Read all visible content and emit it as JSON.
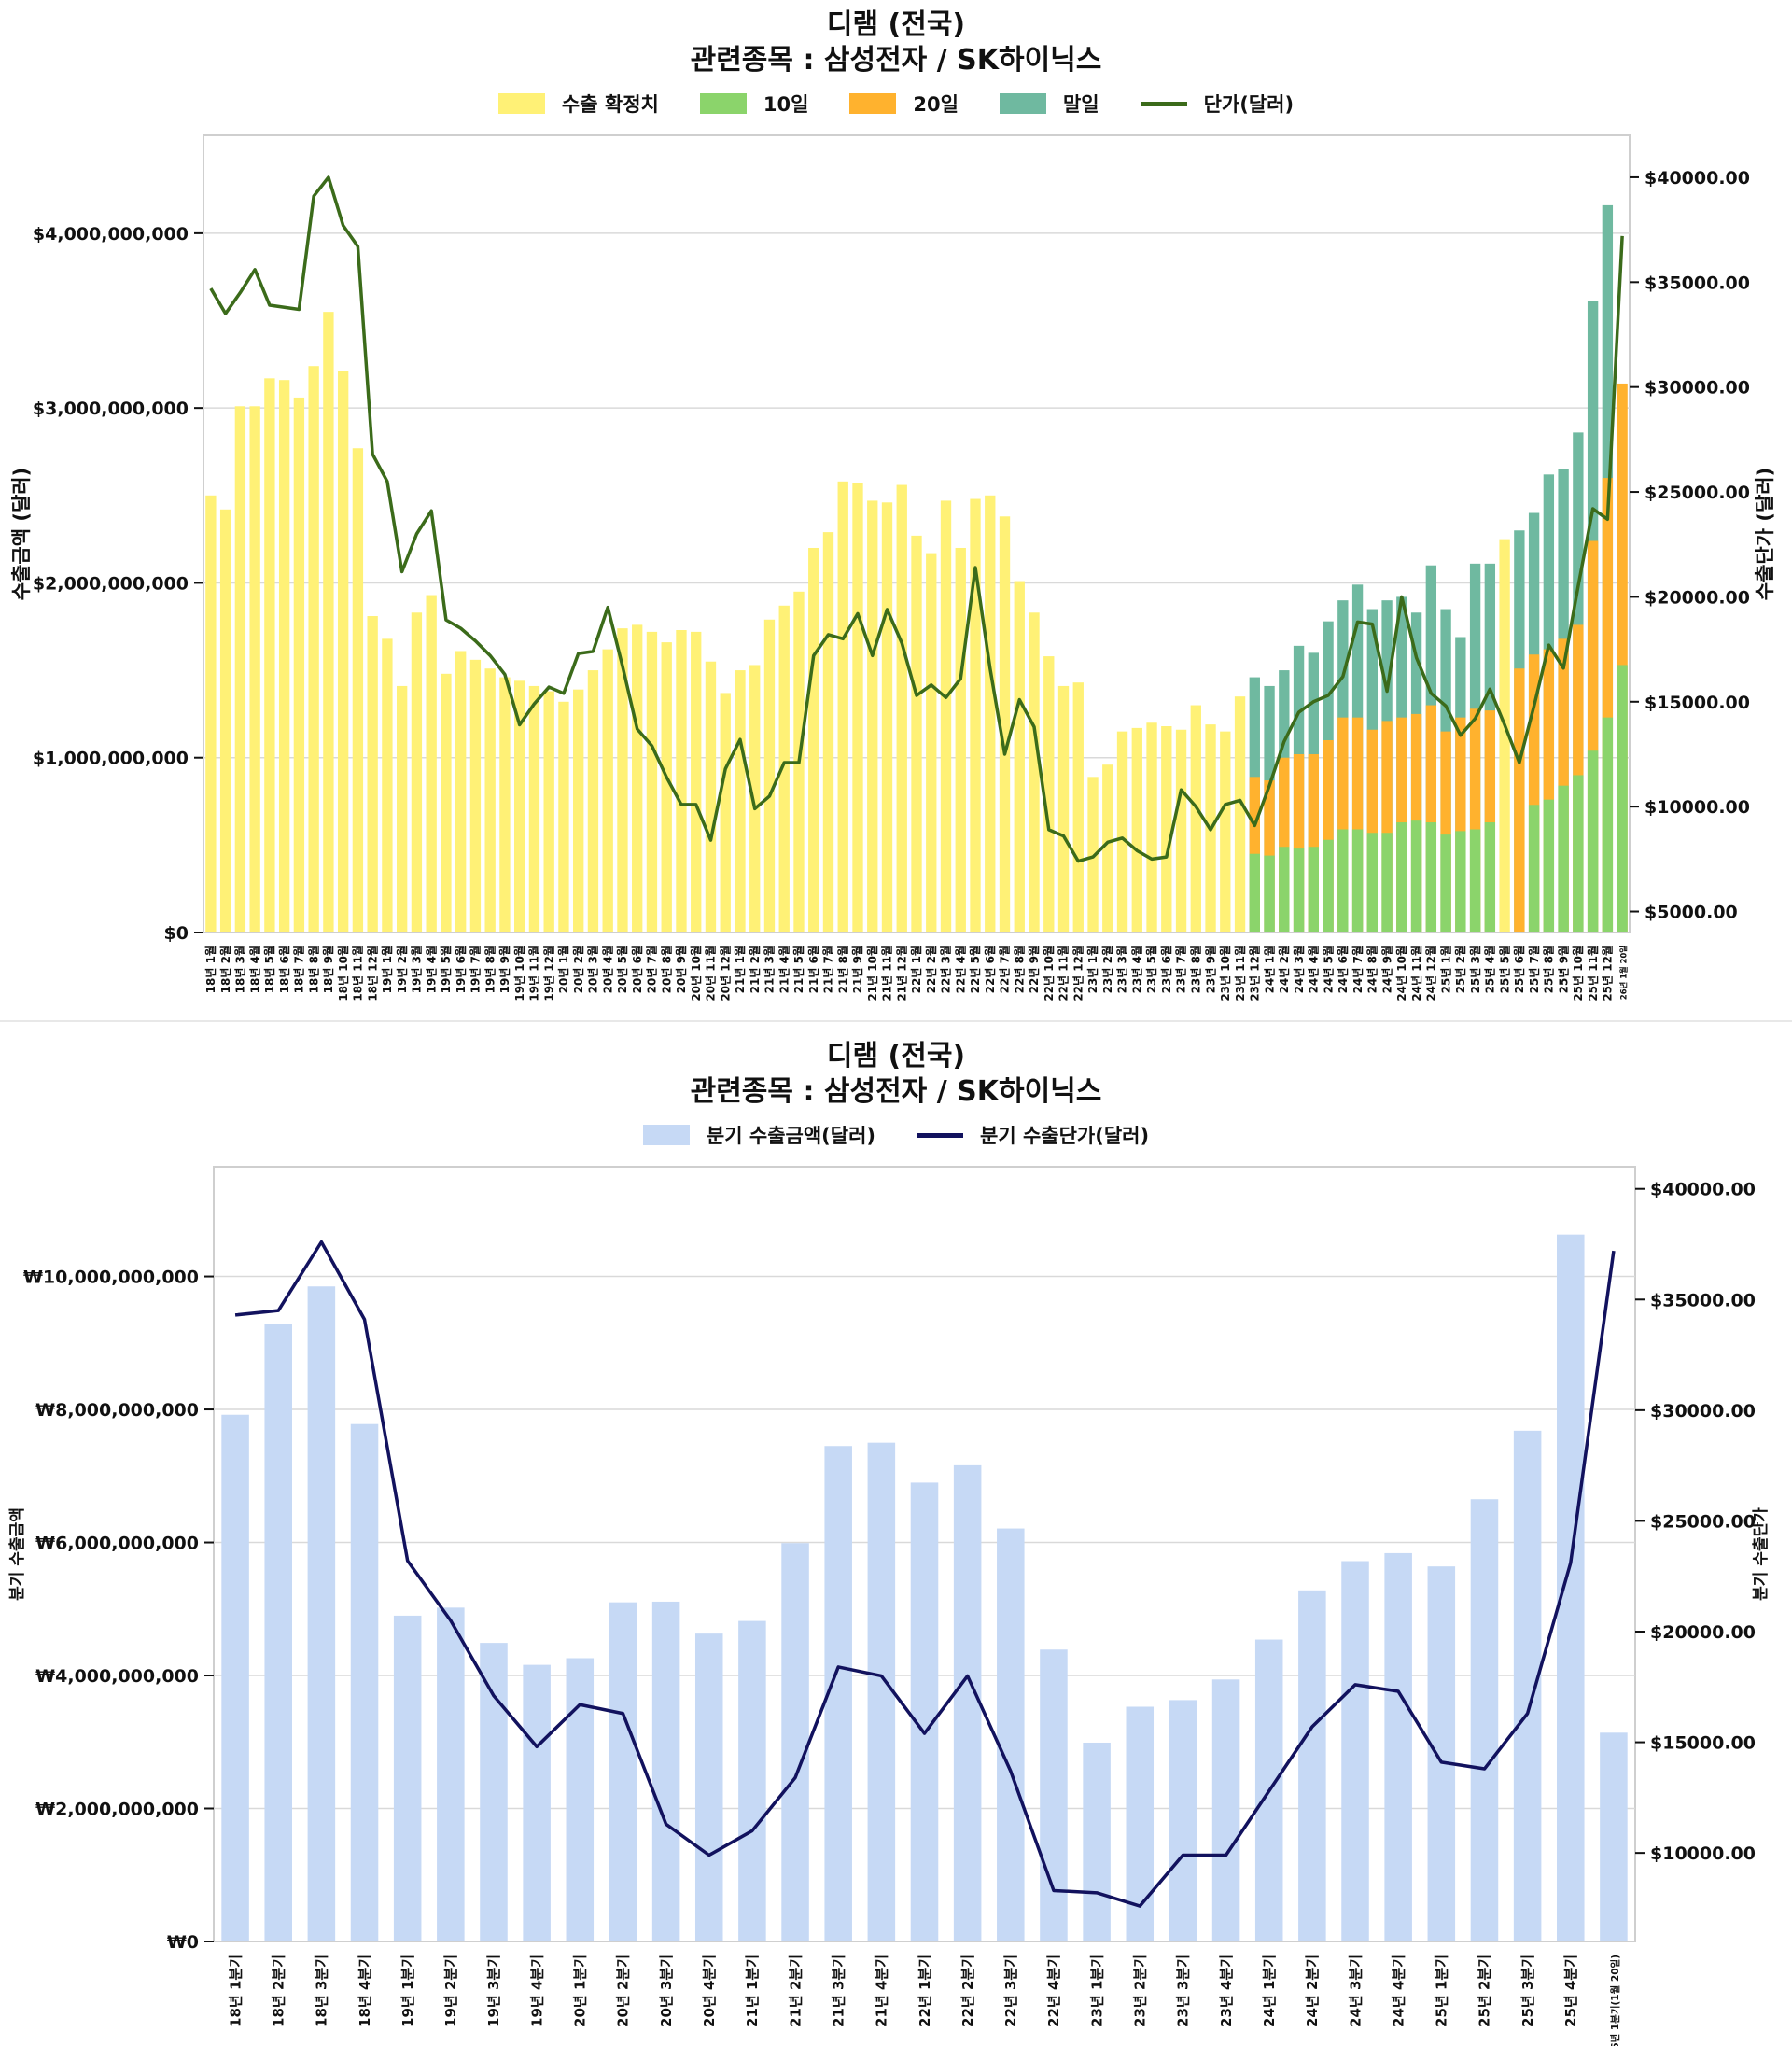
{
  "chart_data": [
    {
      "type": "bar",
      "title": "디램 (전국)",
      "subtitle": "관련종목 : 삼성전자 / SK하이닉스",
      "ylabel": "수출금액 (달러)",
      "y2label": "수출단가 (달러)",
      "ylim": [
        0,
        4560000000
      ],
      "y2lim": [
        4000,
        42000
      ],
      "yticks": [
        0,
        1000000000,
        2000000000,
        3000000000,
        4000000000
      ],
      "ytick_labels": [
        "$0",
        "$1,000,000,000",
        "$2,000,000,000",
        "$3,000,000,000",
        "$4,000,000,000"
      ],
      "y2ticks": [
        5000,
        10000,
        15000,
        20000,
        25000,
        30000,
        35000,
        40000
      ],
      "y2tick_labels": [
        "$5000.00",
        "$10000.00",
        "$15000.00",
        "$20000.00",
        "$25000.00",
        "$30000.00",
        "$35000.00",
        "$40000.00"
      ],
      "grid": true,
      "legend_position": "top-center",
      "legend": [
        {
          "label": "수출 확정치",
          "color": "#FFF176",
          "kind": "bar"
        },
        {
          "label": "10일",
          "color": "#8BD46B",
          "kind": "bar"
        },
        {
          "label": "20일",
          "color": "#FFB22E",
          "kind": "bar"
        },
        {
          "label": "말일",
          "color": "#6FB9A0",
          "kind": "bar"
        },
        {
          "label": "단가(달러)",
          "color": "#3B6B1A",
          "kind": "line"
        }
      ],
      "categories": [
        "18년 1월",
        "18년 2월",
        "18년 3월",
        "18년 4월",
        "18년 5월",
        "18년 6월",
        "18년 7월",
        "18년 8월",
        "18년 9월",
        "18년 10월",
        "18년 11월",
        "18년 12월",
        "19년 1월",
        "19년 2월",
        "19년 3월",
        "19년 4월",
        "19년 5월",
        "19년 6월",
        "19년 7월",
        "19년 8월",
        "19년 9월",
        "19년 10월",
        "19년 11월",
        "19년 12월",
        "20년 1월",
        "20년 2월",
        "20년 3월",
        "20년 4월",
        "20년 5월",
        "20년 6월",
        "20년 7월",
        "20년 8월",
        "20년 9월",
        "20년 10월",
        "20년 11월",
        "20년 12월",
        "21년 1월",
        "21년 2월",
        "21년 3월",
        "21년 4월",
        "21년 5월",
        "21년 6월",
        "21년 7월",
        "21년 8월",
        "21년 9월",
        "21년 10월",
        "21년 11월",
        "21년 12월",
        "22년 1월",
        "22년 2월",
        "22년 3월",
        "22년 4월",
        "22년 5월",
        "22년 6월",
        "22년 7월",
        "22년 8월",
        "22년 9월",
        "22년 10월",
        "22년 11월",
        "22년 12월",
        "23년 1월",
        "23년 2월",
        "23년 3월",
        "23년 4월",
        "23년 5월",
        "23년 6월",
        "23년 7월",
        "23년 8월",
        "23년 9월",
        "23년 10월",
        "23년 11월",
        "23년 12월",
        "24년 1월",
        "24년 2월",
        "24년 3월",
        "24년 4월",
        "24년 5월",
        "24년 6월",
        "24년 7월",
        "24년 8월",
        "24년 9월",
        "24년 10월",
        "24년 11월",
        "24년 12월",
        "25년 1월",
        "25년 2월",
        "25년 3월",
        "25년 4월",
        "25년 5월",
        "25년 6월",
        "25년 7월",
        "25년 8월",
        "25년 9월",
        "25년 10월",
        "25년 11월",
        "25년 12월",
        "26년 1월 20일"
      ],
      "series": [
        {
          "name": "수출 확정치",
          "values": [
            2500000000,
            2420000000,
            3010000000,
            3010000000,
            3170000000,
            3160000000,
            3060000000,
            3240000000,
            3550000000,
            3210000000,
            2770000000,
            1810000000,
            1680000000,
            1410000000,
            1830000000,
            1930000000,
            1480000000,
            1610000000,
            1560000000,
            1510000000,
            1460000000,
            1440000000,
            1410000000,
            1380000000,
            1320000000,
            1390000000,
            1500000000,
            1620000000,
            1740000000,
            1760000000,
            1720000000,
            1660000000,
            1730000000,
            1720000000,
            1550000000,
            1370000000,
            1500000000,
            1530000000,
            1790000000,
            1870000000,
            1950000000,
            2200000000,
            2290000000,
            2580000000,
            2570000000,
            2470000000,
            2460000000,
            2560000000,
            2270000000,
            2170000000,
            2470000000,
            2200000000,
            2480000000,
            2500000000,
            2380000000,
            2010000000,
            1830000000,
            1580000000,
            1410000000,
            1430000000,
            890000000,
            960000000,
            1150000000,
            1170000000,
            1200000000,
            1180000000,
            1160000000,
            1300000000,
            1190000000,
            1150000000,
            1350000000,
            null,
            null,
            null,
            null,
            null,
            null,
            null,
            null,
            null,
            null,
            null,
            null,
            null,
            null,
            null,
            null,
            null,
            2250000000,
            null,
            null,
            null,
            null,
            null,
            null,
            null,
            null
          ]
        },
        {
          "name": "10일",
          "values": [
            null,
            null,
            null,
            null,
            null,
            null,
            null,
            null,
            null,
            null,
            null,
            null,
            null,
            null,
            null,
            null,
            null,
            null,
            null,
            null,
            null,
            null,
            null,
            null,
            null,
            null,
            null,
            null,
            null,
            null,
            null,
            null,
            null,
            null,
            null,
            null,
            null,
            null,
            null,
            null,
            null,
            null,
            null,
            null,
            null,
            null,
            null,
            null,
            null,
            null,
            null,
            null,
            null,
            null,
            null,
            null,
            null,
            null,
            null,
            null,
            null,
            null,
            null,
            null,
            null,
            null,
            null,
            null,
            null,
            null,
            null,
            450000000,
            440000000,
            490000000,
            480000000,
            490000000,
            530000000,
            590000000,
            590000000,
            570000000,
            570000000,
            630000000,
            640000000,
            630000000,
            560000000,
            580000000,
            590000000,
            630000000,
            null,
            0,
            730000000,
            760000000,
            840000000,
            900000000,
            1040000000,
            1230000000,
            1530000000
          ]
        },
        {
          "name": "20일",
          "values": [
            null,
            null,
            null,
            null,
            null,
            null,
            null,
            null,
            null,
            null,
            null,
            null,
            null,
            null,
            null,
            null,
            null,
            null,
            null,
            null,
            null,
            null,
            null,
            null,
            null,
            null,
            null,
            null,
            null,
            null,
            null,
            null,
            null,
            null,
            null,
            null,
            null,
            null,
            null,
            null,
            null,
            null,
            null,
            null,
            null,
            null,
            null,
            null,
            null,
            null,
            null,
            null,
            null,
            null,
            null,
            null,
            null,
            null,
            null,
            null,
            null,
            null,
            null,
            null,
            null,
            null,
            null,
            null,
            null,
            null,
            null,
            890000000,
            870000000,
            1000000000,
            1020000000,
            1020000000,
            1100000000,
            1230000000,
            1230000000,
            1160000000,
            1210000000,
            1230000000,
            1250000000,
            1300000000,
            1150000000,
            1230000000,
            1280000000,
            1270000000,
            null,
            1510000000,
            1590000000,
            1620000000,
            1680000000,
            1760000000,
            2240000000,
            2600000000,
            3140000000
          ]
        },
        {
          "name": "말일",
          "values": [
            null,
            null,
            null,
            null,
            null,
            null,
            null,
            null,
            null,
            null,
            null,
            null,
            null,
            null,
            null,
            null,
            null,
            null,
            null,
            null,
            null,
            null,
            null,
            null,
            null,
            null,
            null,
            null,
            null,
            null,
            null,
            null,
            null,
            null,
            null,
            null,
            null,
            null,
            null,
            null,
            null,
            null,
            null,
            null,
            null,
            null,
            null,
            null,
            null,
            null,
            null,
            null,
            null,
            null,
            null,
            null,
            null,
            null,
            null,
            null,
            null,
            null,
            null,
            null,
            null,
            null,
            null,
            null,
            null,
            null,
            null,
            1460000000,
            1410000000,
            1500000000,
            1640000000,
            1600000000,
            1780000000,
            1900000000,
            1990000000,
            1850000000,
            1900000000,
            1920000000,
            1830000000,
            2100000000,
            1850000000,
            1690000000,
            2110000000,
            2110000000,
            null,
            2300000000,
            2400000000,
            2620000000,
            2650000000,
            2860000000,
            3610000000,
            4160000000,
            null
          ]
        },
        {
          "name": "단가(달러)",
          "axis": "right",
          "values": [
            34700,
            33500,
            34500,
            35600,
            33900,
            33800,
            33700,
            39100,
            40000,
            37700,
            36700,
            26800,
            25500,
            21200,
            23000,
            24100,
            18900,
            18500,
            17900,
            17200,
            16300,
            13900,
            14900,
            15700,
            15400,
            17300,
            17400,
            19500,
            16700,
            13700,
            12900,
            11400,
            10100,
            10100,
            8400,
            11800,
            13200,
            9900,
            10500,
            12100,
            12100,
            17200,
            18200,
            18000,
            19200,
            17200,
            19400,
            17800,
            15300,
            15800,
            15200,
            16100,
            21400,
            16600,
            12500,
            15100,
            13800,
            8900,
            8600,
            7400,
            7600,
            8300,
            8500,
            7900,
            7500,
            7600,
            10800,
            10000,
            8900,
            10100,
            10300,
            9100,
            11000,
            13100,
            14500,
            15000,
            15300,
            16200,
            18800,
            18700,
            15500,
            20000,
            17100,
            15400,
            14800,
            13400,
            14200,
            15600,
            13900,
            12100,
            14800,
            17700,
            16600,
            20500,
            24200,
            23700,
            37200
          ]
        }
      ]
    },
    {
      "type": "bar",
      "title": "디램 (전국)",
      "subtitle": "관련종목 : 삼성전자 / SK하이닉스",
      "ylabel": "분기 수출금액",
      "y2label": "분기 수출단가",
      "ylim": [
        0,
        11650000000
      ],
      "y2lim": [
        6000,
        41000
      ],
      "yticks": [
        0,
        2000000000,
        4000000000,
        6000000000,
        8000000000,
        10000000000
      ],
      "ytick_labels": [
        "₩0",
        "₩2,000,000,000",
        "₩4,000,000,000",
        "₩6,000,000,000",
        "₩8,000,000,000",
        "₩10,000,000,000"
      ],
      "y2ticks": [
        10000,
        15000,
        20000,
        25000,
        30000,
        35000,
        40000
      ],
      "y2tick_labels": [
        "$10000.00",
        "$15000.00",
        "$20000.00",
        "$25000.00",
        "$30000.00",
        "$35000.00",
        "$40000.00"
      ],
      "grid": true,
      "legend_position": "top-center",
      "legend": [
        {
          "label": "분기 수출금액(달러)",
          "color": "#C6D9F5",
          "kind": "bar"
        },
        {
          "label": "분기 수출단가(달러)",
          "color": "#12125E",
          "kind": "line"
        }
      ],
      "categories": [
        "18년 1분기",
        "18년 2분기",
        "18년 3분기",
        "18년 4분기",
        "19년 1분기",
        "19년 2분기",
        "19년 3분기",
        "19년 4분기",
        "20년 1분기",
        "20년 2분기",
        "20년 3분기",
        "20년 4분기",
        "21년 1분기",
        "21년 2분기",
        "21년 3분기",
        "21년 4분기",
        "22년 1분기",
        "22년 2분기",
        "22년 3분기",
        "22년 4분기",
        "23년 1분기",
        "23년 2분기",
        "23년 3분기",
        "23년 4분기",
        "24년 1분기",
        "24년 2분기",
        "24년 3분기",
        "24년 4분기",
        "25년 1분기",
        "25년 2분기",
        "25년 3분기",
        "25년 4분기",
        "26년 1분기(1월 20일)"
      ],
      "series": [
        {
          "name": "분기 수출금액(달러)",
          "values": [
            7920000000,
            9290000000,
            9850000000,
            7780000000,
            4900000000,
            5020000000,
            4490000000,
            4160000000,
            4260000000,
            5100000000,
            5110000000,
            4630000000,
            4820000000,
            5990000000,
            7450000000,
            7500000000,
            6900000000,
            7160000000,
            6210000000,
            4390000000,
            2990000000,
            3530000000,
            3630000000,
            3940000000,
            4540000000,
            5280000000,
            5720000000,
            5840000000,
            5640000000,
            6650000000,
            7680000000,
            10630000000,
            3140000000
          ]
        },
        {
          "name": "분기 수출단가(달러)",
          "axis": "right",
          "values": [
            34300,
            34500,
            37600,
            34100,
            23200,
            20500,
            17100,
            14800,
            16700,
            16300,
            11300,
            9900,
            11000,
            13400,
            18400,
            18000,
            15400,
            18000,
            13700,
            8300,
            8200,
            7600,
            9900,
            9900,
            12800,
            15700,
            17600,
            17300,
            14100,
            13800,
            16300,
            23100,
            37200
          ]
        }
      ]
    }
  ]
}
